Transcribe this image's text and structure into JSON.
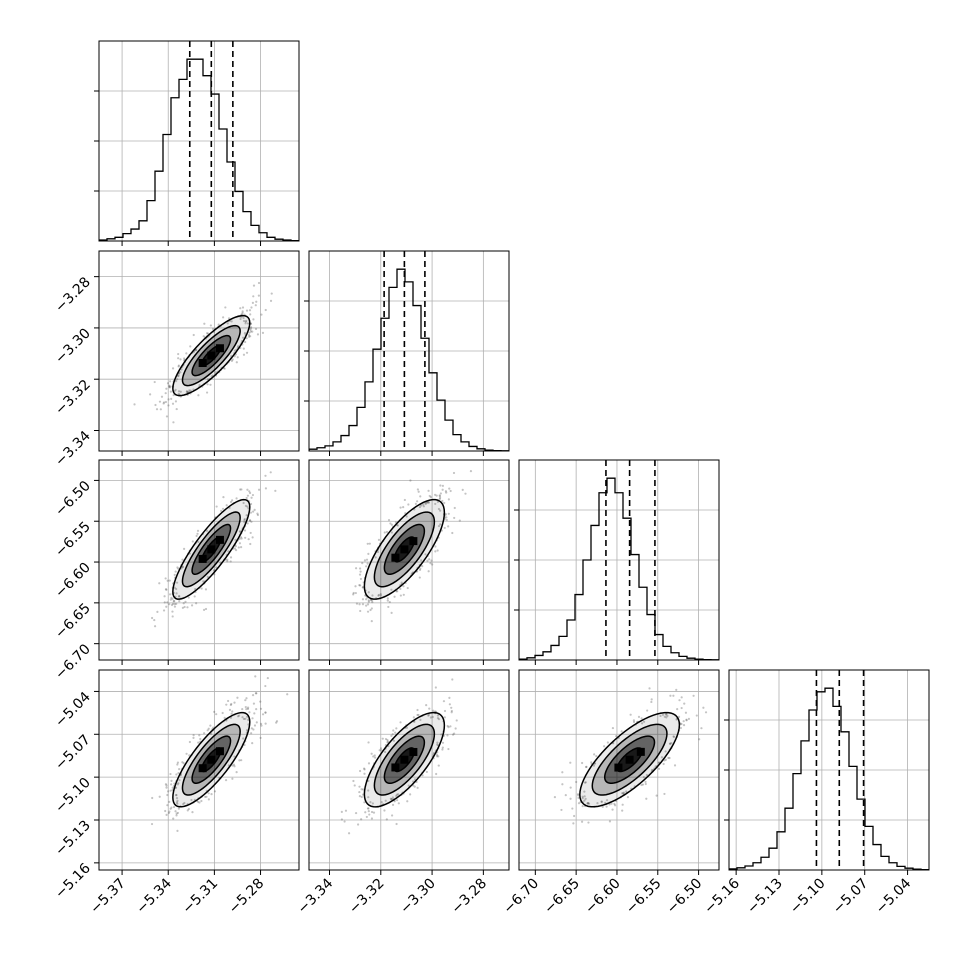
{
  "chart_data": {
    "type": "corner",
    "parameters": [
      {
        "index": 0,
        "range": [
          -5.385,
          -5.255
        ],
        "ticks": [
          -5.37,
          -5.34,
          -5.31,
          -5.28
        ],
        "tick_labels": [
          "−5.37",
          "−5.34",
          "−5.31",
          "−5.28"
        ],
        "quantiles": [
          -5.326,
          -5.312,
          -5.298
        ],
        "median": -5.312,
        "sigma": 0.0125,
        "histogram": [
          0.005,
          0.012,
          0.02,
          0.04,
          0.065,
          0.11,
          0.22,
          0.38,
          0.58,
          0.78,
          0.88,
          0.99,
          0.99,
          0.9,
          0.8,
          0.61,
          0.43,
          0.27,
          0.16,
          0.085,
          0.045,
          0.02,
          0.01,
          0.005,
          0.002
        ]
      },
      {
        "index": 1,
        "range": [
          -3.348,
          -3.27
        ],
        "ticks": [
          -3.34,
          -3.32,
          -3.3,
          -3.28
        ],
        "tick_labels": [
          "−3.34",
          "−3.32",
          "−3.30",
          "−3.28"
        ],
        "quantiles": [
          -3.3187,
          -3.3108,
          -3.3028
        ],
        "median": -3.3108,
        "sigma": 0.0078,
        "histogram": [
          0.01,
          0.018,
          0.028,
          0.05,
          0.085,
          0.14,
          0.24,
          0.38,
          0.56,
          0.73,
          0.9,
          1.0,
          0.93,
          0.8,
          0.62,
          0.43,
          0.28,
          0.17,
          0.09,
          0.05,
          0.025,
          0.012,
          0.005,
          0.002,
          0.001
        ]
      },
      {
        "index": 2,
        "range": [
          -6.72,
          -6.475
        ],
        "ticks": [
          -6.7,
          -6.65,
          -6.6,
          -6.55,
          -6.5
        ],
        "tick_labels": [
          "−6.70",
          "−6.65",
          "−6.60",
          "−6.55",
          "−6.50"
        ],
        "quantiles": [
          -6.6135,
          -6.5845,
          -6.5535
        ],
        "median": -6.5845,
        "sigma": 0.0305,
        "histogram": [
          0.005,
          0.012,
          0.025,
          0.045,
          0.08,
          0.13,
          0.22,
          0.36,
          0.55,
          0.74,
          0.92,
          1.0,
          0.92,
          0.78,
          0.58,
          0.4,
          0.25,
          0.14,
          0.075,
          0.04,
          0.02,
          0.01,
          0.005,
          0.002,
          0.001
        ]
      },
      {
        "index": 3,
        "range": [
          -5.165,
          -5.025
        ],
        "ticks": [
          -5.16,
          -5.13,
          -5.1,
          -5.07,
          -5.04
        ],
        "tick_labels": [
          "−5.16",
          "−5.13",
          "−5.10",
          "−5.07",
          "−5.04"
        ],
        "quantiles": [
          -5.1038,
          -5.0878,
          -5.0708
        ],
        "median": -5.0878,
        "sigma": 0.0165,
        "histogram": [
          0.006,
          0.012,
          0.022,
          0.04,
          0.07,
          0.12,
          0.21,
          0.34,
          0.53,
          0.71,
          0.88,
          0.98,
          1.0,
          0.9,
          0.76,
          0.57,
          0.39,
          0.24,
          0.14,
          0.075,
          0.04,
          0.02,
          0.01,
          0.005,
          0.002
        ]
      }
    ],
    "correlations": [
      [
        0,
        0.82,
        0.85,
        0.8
      ],
      [
        0.82,
        0,
        0.74,
        0.73
      ],
      [
        0.85,
        0.74,
        0,
        0.74
      ],
      [
        0.8,
        0.73,
        0.74,
        0
      ]
    ],
    "contour_levels_sigma": [
      0.5,
      1.0,
      1.5,
      2.0
    ],
    "grid": true,
    "colors": {
      "line": "#000000",
      "scatter": "#555555",
      "grid": "#b0b0b0",
      "fill": "#000000"
    }
  }
}
